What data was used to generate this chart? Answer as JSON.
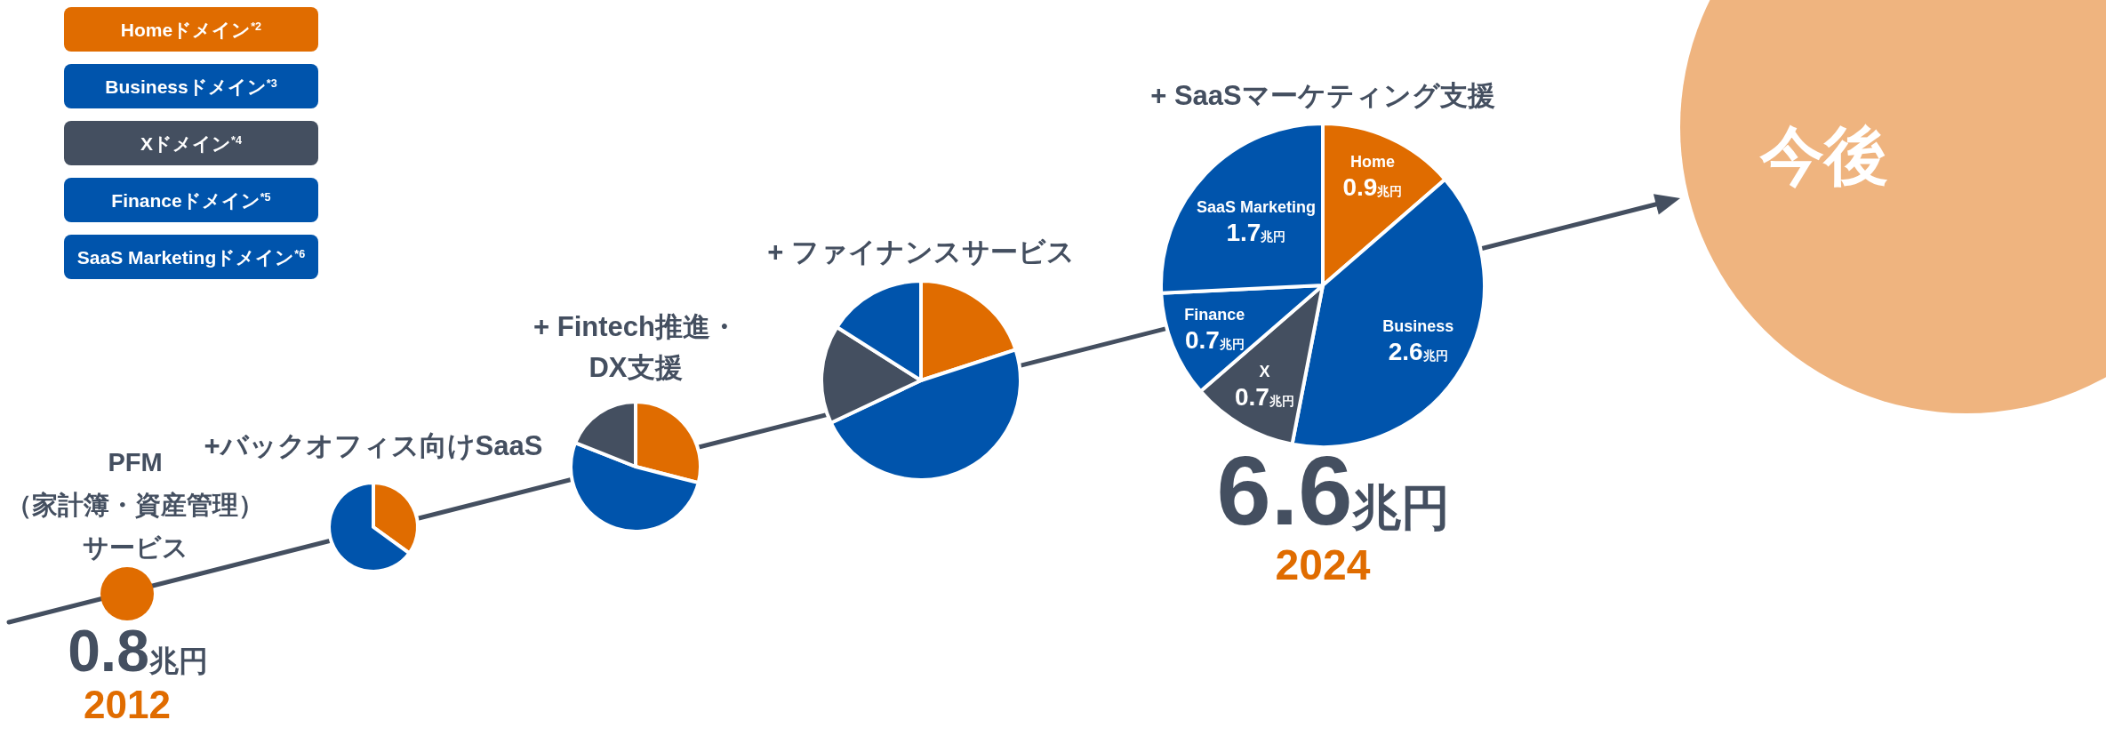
{
  "chart_data": [
    {
      "type": "other",
      "categories": [
        "Homeドメイン$^{*2}$",
        "Businessドメイン$^{*3}$",
        "Xドメイン$^{*4}$",
        "Financeドメイン$^{*5}$",
        "SaaS Marketingドメイン$^{*6}$"
      ],
      "colors": [
        "#e06c00",
        "#0054ac",
        "#444f60",
        "#0054ac",
        "#0054ac"
      ]
    },
    {
      "type": "pie",
      "title": "PFM",
      "subtitle": "（家計簿・資産管理）サービス",
      "categories": [
        null
      ],
      "values": [
        100
      ],
      "colors": [
        "#e06c00"
      ],
      "annotations": [
        "0.8兆円",
        "2012"
      ]
    },
    {
      "type": "pie",
      "title": "+バックオフィス向けSaaS",
      "categories": [
        null,
        null
      ],
      "values": [
        35,
        65
      ],
      "colors": [
        "#e06c00",
        "#0054ac"
      ]
    },
    {
      "type": "pie",
      "title": "+ Fintech推進・DX支援",
      "categories": [
        null,
        null,
        null
      ],
      "values": [
        29,
        52,
        19
      ],
      "colors": [
        "#e06c00",
        "#0054ac",
        "#444f60"
      ]
    },
    {
      "type": "pie",
      "title": "+ ファイナンスサービス",
      "categories": [
        null,
        null,
        null,
        null
      ],
      "values": [
        20,
        48,
        16,
        16
      ],
      "colors": [
        "#e06c00",
        "#0054ac",
        "#444f60",
        "#0054ac"
      ]
    },
    {
      "type": "pie",
      "title": "+ SaaSマーケティング支援",
      "categories": [
        "Home",
        "Business",
        "X",
        "Finance",
        "SaaS Marketing"
      ],
      "values": [
        0.9,
        2.6,
        0.7,
        0.7,
        1.7
      ],
      "value_labels": [
        "0.9兆円",
        "2.6兆円",
        "0.7兆円",
        "0.7兆円",
        "1.7兆円"
      ],
      "colors": [
        "#e06c00",
        "#0054ac",
        "#444f60",
        "#0054ac",
        "#0054ac"
      ],
      "annotations": [
        "6.6兆円",
        "2024"
      ]
    },
    {
      "type": "other",
      "title": "今後",
      "colors": [
        "#efb47f"
      ]
    }
  ]
}
